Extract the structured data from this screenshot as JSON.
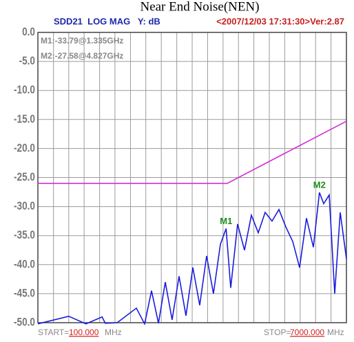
{
  "chart_data": {
    "type": "line",
    "title": "Near End Noise(NEN)",
    "header": {
      "trace": "SDD21  LOG MAG   Y: dB",
      "stamp": "<2007/12/03 17:31:30>Ver:2.87"
    },
    "markers": [
      {
        "label": "M1",
        "readout": "M1:-33.79@1.335GHz",
        "index": 19
      },
      {
        "label": "M2",
        "readout": "M2:-27.58@4.827GHz",
        "index": 33
      }
    ],
    "start": {
      "prefix": "START=",
      "value": "100.000",
      "unit": "MHz"
    },
    "stop": {
      "prefix": "STOP=",
      "value": "7000.000",
      "unit": "MHz"
    },
    "xlog": true,
    "xlim": [
      100,
      7000
    ],
    "xticks": [
      100,
      124,
      153,
      189,
      234,
      289,
      358,
      442,
      547,
      677,
      837,
      1035,
      1280,
      1583,
      1957,
      2421,
      2993,
      3702,
      4578,
      5662,
      7000
    ],
    "ylim": [
      -50,
      0
    ],
    "yticks": [
      {
        "value": 0,
        "label": "0.0"
      },
      {
        "value": -5,
        "label": "-5.0"
      },
      {
        "value": -10,
        "label": "-10.0"
      },
      {
        "value": -15,
        "label": "-15.0"
      },
      {
        "value": -20,
        "label": "-20.0"
      },
      {
        "value": -25,
        "label": "-25.0"
      },
      {
        "value": -30,
        "label": "-30.0"
      },
      {
        "value": -35,
        "label": "-35.0"
      },
      {
        "value": -40,
        "label": "-40.0"
      },
      {
        "value": -45,
        "label": "-45.0"
      },
      {
        "value": -50,
        "label": "-50.0"
      }
    ],
    "grid": true,
    "series": [
      {
        "color": "#1a1adc",
        "x": [
          100,
          153,
          194,
          242,
          253,
          298,
          388,
          435,
          478,
          526,
          578,
          635,
          699,
          768,
          845,
          929,
          1021,
          1122,
          1234,
          1335,
          1423,
          1564,
          1720,
          1891,
          2079,
          2286,
          2514,
          2764,
          3039,
          3341,
          3673,
          4039,
          4441,
          4827,
          5119,
          5524,
          5960,
          6430,
          7000
        ],
        "values": [
          -50.2,
          -48.9,
          -50.2,
          -49.0,
          -50.1,
          -50.0,
          -47.5,
          -50.2,
          -44.5,
          -50.1,
          -43.0,
          -49.5,
          -42.0,
          -48.8,
          -40.5,
          -47.0,
          -38.5,
          -45.0,
          -36.5,
          -33.79,
          -44.0,
          -33.0,
          -37.5,
          -31.5,
          -34.5,
          -31.0,
          -32.5,
          -30.5,
          -33.5,
          -36.0,
          -40.5,
          -32.0,
          -37.0,
          -27.58,
          -29.5,
          -28.0,
          -45.0,
          -31.0,
          -39.0
        ]
      },
      {
        "color": "#d22ed2",
        "x": [
          100,
          1357,
          7000
        ],
        "values": [
          -26,
          -26,
          -15.3
        ]
      }
    ]
  }
}
